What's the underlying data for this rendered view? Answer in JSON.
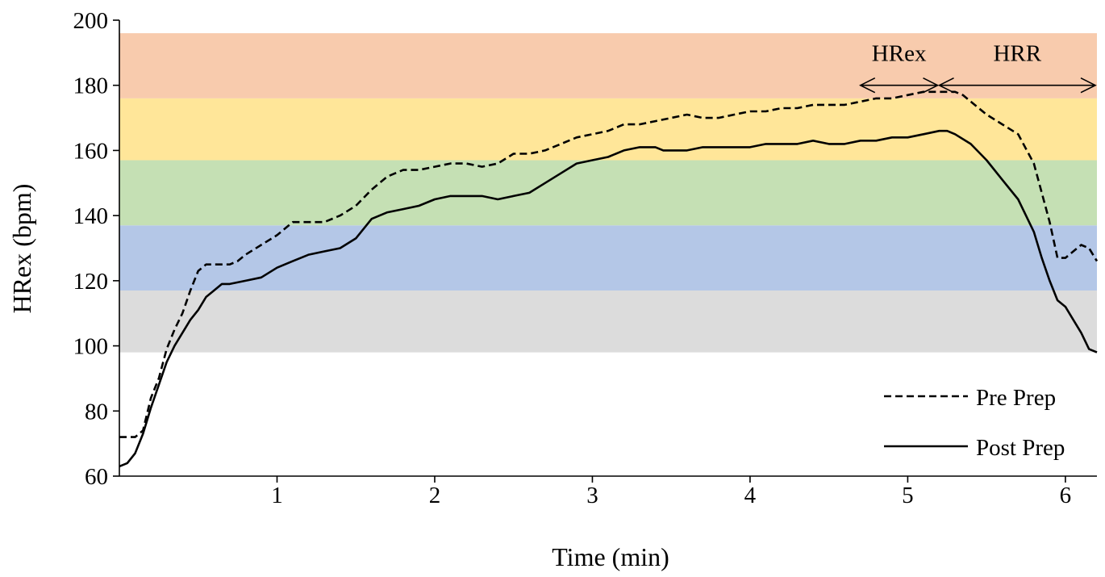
{
  "chart_data": {
    "type": "line",
    "title": "",
    "xlabel": "Time (min)",
    "ylabel": "HRex (bpm)",
    "xlim": [
      0,
      6.2
    ],
    "ylim": [
      60,
      200
    ],
    "x_ticks": [
      1,
      2,
      3,
      4,
      5,
      6
    ],
    "y_ticks": [
      60,
      80,
      100,
      120,
      140,
      160,
      180,
      200
    ],
    "grid": false,
    "legend_position": "bottom-right",
    "zones": [
      {
        "from": 98,
        "to": 117,
        "color": "#dcdcdc"
      },
      {
        "from": 117,
        "to": 137,
        "color": "#b4c7e7"
      },
      {
        "from": 137,
        "to": 157,
        "color": "#c5e0b4"
      },
      {
        "from": 157,
        "to": 176,
        "color": "#ffe699"
      },
      {
        "from": 176,
        "to": 196,
        "color": "#f8cbad"
      }
    ],
    "annotations": [
      {
        "text": "HRex",
        "from": 4.7,
        "to": 5.2,
        "y": 180
      },
      {
        "text": "HRR",
        "from": 5.2,
        "to": 6.2,
        "y": 180
      }
    ],
    "series": [
      {
        "name": "Pre Prep",
        "style": "dashed",
        "x": [
          0,
          0.1,
          0.15,
          0.2,
          0.25,
          0.3,
          0.35,
          0.4,
          0.45,
          0.5,
          0.55,
          0.6,
          0.7,
          0.75,
          0.8,
          0.9,
          1.0,
          1.1,
          1.15,
          1.3,
          1.4,
          1.5,
          1.6,
          1.7,
          1.8,
          1.9,
          2.0,
          2.1,
          2.2,
          2.3,
          2.4,
          2.5,
          2.6,
          2.7,
          2.8,
          2.9,
          3.0,
          3.1,
          3.2,
          3.3,
          3.4,
          3.5,
          3.6,
          3.7,
          3.8,
          3.9,
          4.0,
          4.1,
          4.2,
          4.3,
          4.4,
          4.5,
          4.6,
          4.7,
          4.8,
          4.9,
          5.0,
          5.1,
          5.2,
          5.3,
          5.35,
          5.4,
          5.5,
          5.6,
          5.7,
          5.8,
          5.9,
          5.95,
          6.0,
          6.05,
          6.1,
          6.15,
          6.2
        ],
        "y": [
          72,
          72,
          74,
          84,
          90,
          99,
          105,
          110,
          117,
          123,
          125,
          125,
          125,
          126,
          128,
          131,
          134,
          138,
          138,
          138,
          140,
          143,
          148,
          152,
          154,
          154,
          155,
          156,
          156,
          155,
          156,
          159,
          159,
          160,
          162,
          164,
          165,
          166,
          168,
          168,
          169,
          170,
          171,
          170,
          170,
          171,
          172,
          172,
          173,
          173,
          174,
          174,
          174,
          175,
          176,
          176,
          177,
          178,
          178,
          178,
          177,
          175,
          171,
          168,
          165,
          156,
          138,
          127,
          127,
          129,
          131,
          130,
          126
        ]
      },
      {
        "name": "Post Prep",
        "style": "solid",
        "x": [
          0,
          0.05,
          0.1,
          0.15,
          0.2,
          0.25,
          0.3,
          0.35,
          0.4,
          0.45,
          0.5,
          0.55,
          0.6,
          0.65,
          0.7,
          0.8,
          0.9,
          1.0,
          1.1,
          1.2,
          1.3,
          1.4,
          1.5,
          1.6,
          1.7,
          1.8,
          1.9,
          2.0,
          2.1,
          2.2,
          2.3,
          2.4,
          2.5,
          2.6,
          2.7,
          2.8,
          2.9,
          3.0,
          3.1,
          3.2,
          3.3,
          3.4,
          3.45,
          3.5,
          3.6,
          3.7,
          3.8,
          3.9,
          4.0,
          4.1,
          4.2,
          4.3,
          4.4,
          4.5,
          4.6,
          4.7,
          4.8,
          4.9,
          5.0,
          5.1,
          5.2,
          5.25,
          5.3,
          5.4,
          5.5,
          5.6,
          5.7,
          5.8,
          5.85,
          5.9,
          5.95,
          6.0,
          6.05,
          6.1,
          6.15,
          6.2
        ],
        "y": [
          63,
          64,
          67,
          73,
          81,
          88,
          95,
          100,
          104,
          108,
          111,
          115,
          117,
          119,
          119,
          120,
          121,
          124,
          126,
          128,
          129,
          130,
          133,
          139,
          141,
          142,
          143,
          145,
          146,
          146,
          146,
          145,
          146,
          147,
          150,
          153,
          156,
          157,
          158,
          160,
          161,
          161,
          160,
          160,
          160,
          161,
          161,
          161,
          161,
          162,
          162,
          162,
          163,
          162,
          162,
          163,
          163,
          164,
          164,
          165,
          166,
          166,
          165,
          162,
          157,
          151,
          145,
          135,
          127,
          120,
          114,
          112,
          108,
          104,
          99,
          98
        ]
      }
    ]
  }
}
